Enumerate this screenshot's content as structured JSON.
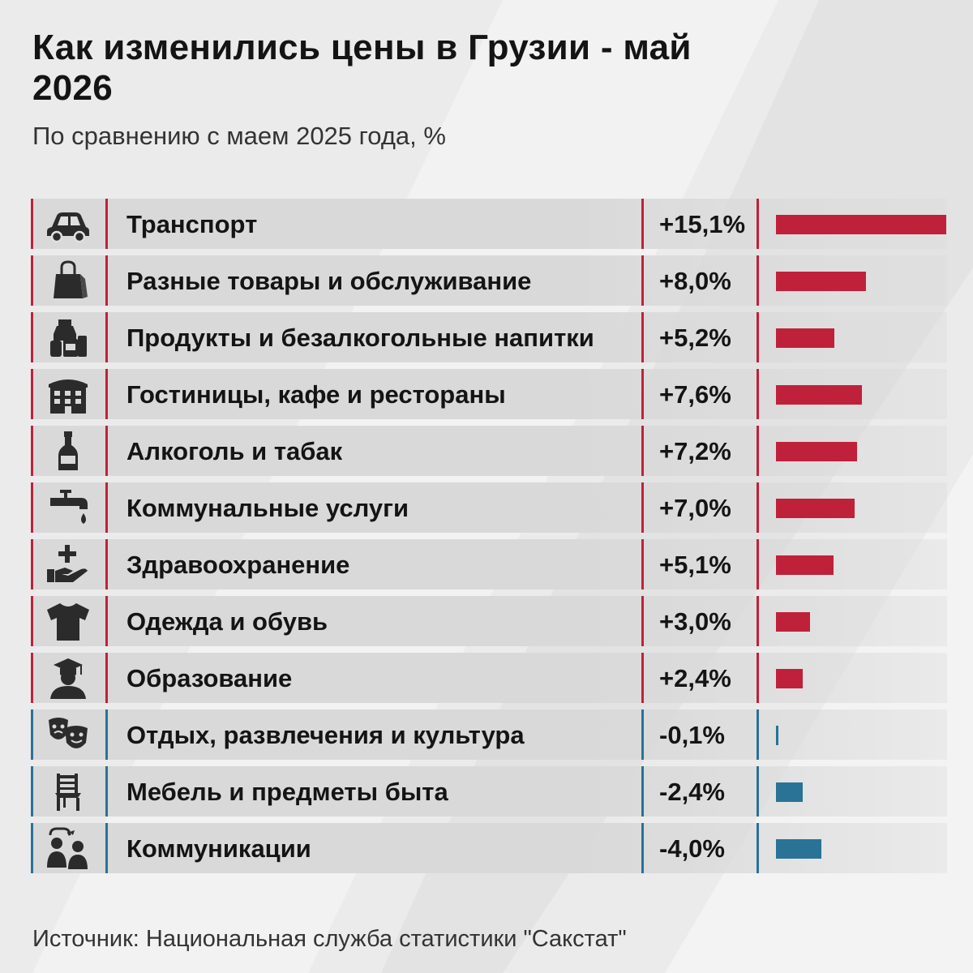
{
  "title": "Как изменились цены в Грузии - май 2026",
  "subtitle": "По сравнению с маем 2025 года, %",
  "source": "Источник: Национальная служба статистики \"Сакстат\"",
  "colors": {
    "positive": "#c0213a",
    "negative": "#2a7296",
    "background": "#ebebeb",
    "row": "#d9d9d9"
  },
  "chart_data": {
    "type": "bar",
    "orientation": "horizontal",
    "title": "Как изменились цены в Грузии - май 2026",
    "subtitle": "По сравнению с маем 2025 года, %",
    "categories": [
      "Транспорт",
      "Разные товары и обслуживание",
      "Продукты и безалкогольные напитки",
      "Гостиницы, кафе и рестораны",
      "Алкоголь и табак",
      "Коммунальные услуги",
      "Здравоохранение",
      "Одежда и обувь",
      "Образование",
      "Отдых, развлечения и культура",
      "Мебель и предметы быта",
      "Коммуникации"
    ],
    "values": [
      15.1,
      8.0,
      5.2,
      7.6,
      7.2,
      7.0,
      5.1,
      3.0,
      2.4,
      -0.1,
      -2.4,
      -4.0
    ],
    "value_labels": [
      "+15,1%",
      "+8,0%",
      "+5,2%",
      "+7,6%",
      "+7,2%",
      "+7,0%",
      "+5,1%",
      "+3,0%",
      "+2,4%",
      "-0,1%",
      "-2,4%",
      "-4,0%"
    ],
    "icons": [
      "car-icon",
      "shopping-bag-icon",
      "groceries-icon",
      "hotel-icon",
      "bottle-icon",
      "water-tap-icon",
      "healthcare-hand-icon",
      "tshirt-icon",
      "graduate-icon",
      "theater-masks-icon",
      "chair-icon",
      "people-communication-icon"
    ],
    "bar_scale_max_abs": 15.1,
    "grid": false,
    "legend": "none"
  }
}
